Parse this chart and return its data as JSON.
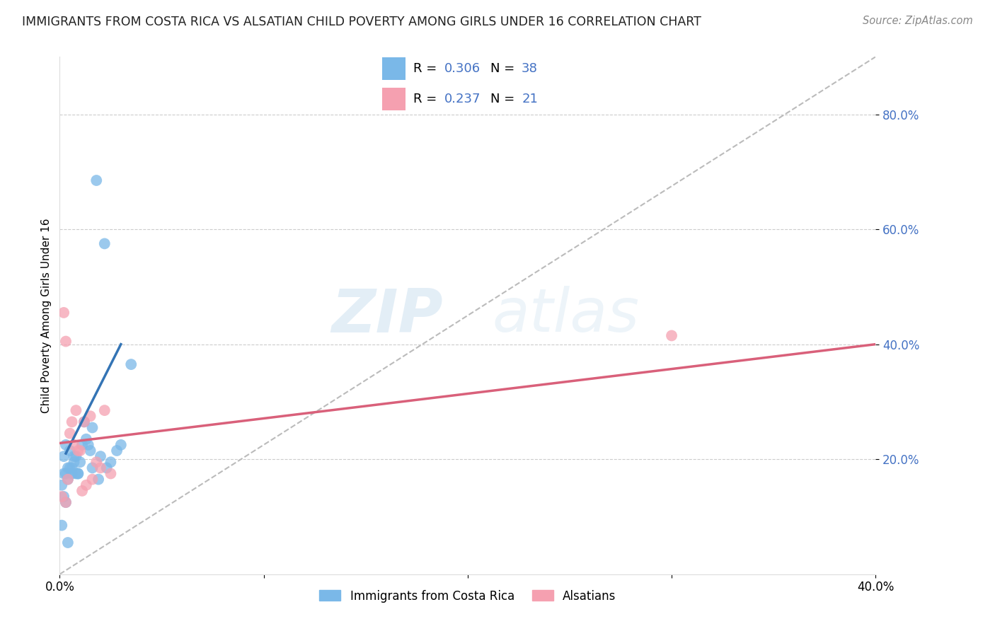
{
  "title": "IMMIGRANTS FROM COSTA RICA VS ALSATIAN CHILD POVERTY AMONG GIRLS UNDER 16 CORRELATION CHART",
  "source": "Source: ZipAtlas.com",
  "ylabel": "Child Poverty Among Girls Under 16",
  "xlim": [
    0.0,
    0.4
  ],
  "ylim": [
    0.0,
    0.9
  ],
  "yticks": [
    0.2,
    0.4,
    0.6,
    0.8
  ],
  "ytick_labels": [
    "20.0%",
    "40.0%",
    "60.0%",
    "80.0%"
  ],
  "xticks": [
    0.0,
    0.1,
    0.2,
    0.3,
    0.4
  ],
  "xtick_labels": [
    "0.0%",
    "",
    "",
    "",
    "40.0%"
  ],
  "blue_r": "0.306",
  "blue_n": "38",
  "pink_r": "0.237",
  "pink_n": "21",
  "legend_label_blue": "Immigrants from Costa Rica",
  "legend_label_pink": "Alsatians",
  "blue_color": "#7ab8e8",
  "pink_color": "#f5a0b0",
  "blue_line_color": "#3474b5",
  "pink_line_color": "#d9607a",
  "diagonal_color": "#bbbbbb",
  "watermark_zip": "ZIP",
  "watermark_atlas": "atlas",
  "title_color": "#222222",
  "label_color": "#4472c4",
  "blue_scatter_x": [
    0.012,
    0.016,
    0.002,
    0.004,
    0.006,
    0.008,
    0.003,
    0.005,
    0.001,
    0.002,
    0.003,
    0.018,
    0.022,
    0.035,
    0.028,
    0.015,
    0.011,
    0.013,
    0.003,
    0.004,
    0.008,
    0.006,
    0.014,
    0.02,
    0.025,
    0.03,
    0.002,
    0.005,
    0.007,
    0.009,
    0.016,
    0.019,
    0.023,
    0.001,
    0.004,
    0.007,
    0.009,
    0.01
  ],
  "blue_scatter_y": [
    0.265,
    0.255,
    0.205,
    0.185,
    0.175,
    0.175,
    0.225,
    0.215,
    0.155,
    0.135,
    0.125,
    0.685,
    0.575,
    0.365,
    0.215,
    0.215,
    0.225,
    0.235,
    0.175,
    0.165,
    0.205,
    0.185,
    0.225,
    0.205,
    0.195,
    0.225,
    0.175,
    0.185,
    0.205,
    0.175,
    0.185,
    0.165,
    0.185,
    0.085,
    0.055,
    0.195,
    0.175,
    0.195
  ],
  "pink_scatter_x": [
    0.002,
    0.003,
    0.008,
    0.006,
    0.005,
    0.007,
    0.01,
    0.018,
    0.02,
    0.022,
    0.015,
    0.012,
    0.025,
    0.001,
    0.003,
    0.009,
    0.016,
    0.013,
    0.011,
    0.3,
    0.004
  ],
  "pink_scatter_y": [
    0.455,
    0.405,
    0.285,
    0.265,
    0.245,
    0.225,
    0.215,
    0.195,
    0.185,
    0.285,
    0.275,
    0.265,
    0.175,
    0.135,
    0.125,
    0.215,
    0.165,
    0.155,
    0.145,
    0.415,
    0.165
  ],
  "blue_line_x": [
    0.003,
    0.03
  ],
  "blue_line_y": [
    0.21,
    0.4
  ],
  "pink_line_x": [
    0.0,
    0.4
  ],
  "pink_line_y": [
    0.228,
    0.4
  ],
  "diag_line_x": [
    0.0,
    0.4
  ],
  "diag_line_y": [
    0.0,
    0.9
  ]
}
